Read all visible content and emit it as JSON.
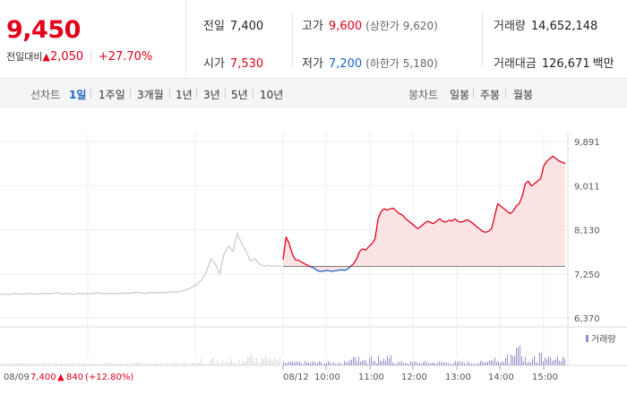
{
  "summary": {
    "price": "9,450",
    "change_label": "전일대비",
    "change_arrow": "▲",
    "change_value": "2,050",
    "change_pct": "+27.70%",
    "prev_close": {
      "label": "전일",
      "value": "7,400"
    },
    "open": {
      "label": "시가",
      "value": "7,530"
    },
    "high": {
      "label": "고가",
      "value": "9,600",
      "limit_label": "(상한가 9,620)"
    },
    "low": {
      "label": "저가",
      "value": "7,200",
      "limit_label": "(하한가 5,180)"
    },
    "volume": {
      "label": "거래량",
      "value": "14,652,148"
    },
    "amount": {
      "label": "거래대금",
      "value": "126,671",
      "unit": "백만"
    }
  },
  "line_chart": {
    "label": "선차트",
    "options": [
      "1일",
      "1주일",
      "3개월",
      "1년",
      "3년",
      "5년",
      "10년"
    ],
    "active": "1일"
  },
  "candle_chart": {
    "label": "봉차트",
    "options": [
      "일봉",
      "주봉",
      "월봉"
    ]
  },
  "colors": {
    "up": "#e2001a",
    "down": "#1b63c4",
    "prev": "#c8c8c8",
    "volume": "#9b8cc9",
    "fill": "#fde4e4"
  },
  "chart_data": {
    "type": "line",
    "y_ticks": [
      "9,891",
      "9,011",
      "8,130",
      "7,250",
      "6,370"
    ],
    "ylim": [
      6370,
      9891
    ],
    "baseline": 7400,
    "x_ticks": [
      "08/12",
      "10:00",
      "11:00",
      "12:00",
      "13:00",
      "14:00",
      "15:00"
    ],
    "prev_day_label": "08/09",
    "prev_day_info": {
      "close": "7,400",
      "arrow": "▲",
      "change": "840",
      "pct": "(+12.80%)"
    },
    "volume_legend": "거래량",
    "series": [
      {
        "segment": "previous-day",
        "values": [
          6840,
          6850,
          6830,
          6860,
          6850,
          6840,
          6850,
          6860,
          6840,
          6850,
          6860,
          6850,
          6860,
          6870,
          6850,
          6860,
          6850,
          6840,
          6860,
          6850,
          6850,
          6860,
          6870,
          6860,
          6850,
          6860,
          6860,
          6850,
          6870,
          6860,
          6870,
          6880,
          6870,
          6860,
          6880,
          6870,
          6880,
          6870,
          6880,
          6890,
          6880,
          6900,
          6920,
          6950,
          7000,
          7050,
          7150,
          7300,
          7550,
          7450,
          7250,
          7650,
          7800,
          7700,
          8050,
          7850,
          7700,
          7500,
          7550,
          7450,
          7400,
          7420,
          7400,
          7410,
          7400
        ]
      },
      {
        "segment": "today",
        "values": [
          7530,
          7990,
          7850,
          7650,
          7530,
          7520,
          7490,
          7450,
          7420,
          7390,
          7370,
          7320,
          7300,
          7300,
          7320,
          7310,
          7300,
          7310,
          7320,
          7330,
          7320,
          7340,
          7400,
          7450,
          7550,
          7700,
          7750,
          7720,
          7800,
          7850,
          7950,
          8350,
          8500,
          8550,
          8520,
          8550,
          8560,
          8500,
          8450,
          8420,
          8350,
          8300,
          8250,
          8200,
          8150,
          8200,
          8250,
          8300,
          8280,
          8250,
          8300,
          8350,
          8300,
          8280,
          8320,
          8300,
          8350,
          8300,
          8280,
          8300,
          8330,
          8300,
          8250,
          8200,
          8150,
          8100,
          8080,
          8100,
          8150,
          8400,
          8650,
          8600,
          8550,
          8500,
          8450,
          8500,
          8600,
          8650,
          8800,
          9050,
          9100,
          9000,
          9050,
          9100,
          9150,
          9400,
          9500,
          9550,
          9600,
          9550,
          9500,
          9480,
          9450
        ]
      }
    ]
  }
}
